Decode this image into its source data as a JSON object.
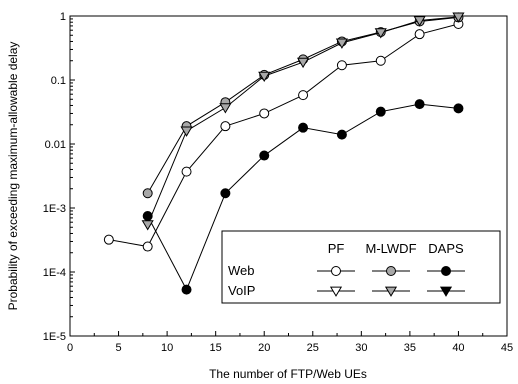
{
  "chart_data": {
    "type": "line",
    "xlabel": "The number of FTP/Web UEs",
    "ylabel": "Probability of exceeding maximum-allowable delay",
    "xlim": [
      0,
      45
    ],
    "ylim": [
      1e-05,
      1
    ],
    "yscale": "log",
    "x_ticks": [
      0,
      5,
      10,
      15,
      20,
      25,
      30,
      35,
      40,
      45
    ],
    "x_tick_labels": [
      "0",
      "5",
      "10",
      "15",
      "20",
      "25",
      "30",
      "35",
      "40",
      "45"
    ],
    "y_ticks": [
      1e-05,
      0.0001,
      0.001,
      0.01,
      0.1,
      1
    ],
    "y_tick_labels": [
      "1E-5",
      "1E-4",
      "1E-3",
      "0.01",
      "0.1",
      "1"
    ],
    "grid": false,
    "legend": {
      "placement": "bottom-right",
      "column_headers": [
        "PF",
        "M-LWDF",
        "DAPS"
      ],
      "row_labels": [
        "Web",
        "VoIP"
      ]
    },
    "series": [
      {
        "traffic": "Web",
        "scheduler": "PF",
        "marker": "circle",
        "fill": "#ffffff",
        "x": [
          4,
          8,
          12,
          16,
          20,
          24,
          28,
          32,
          36,
          40
        ],
        "y": [
          0.00032,
          0.00025,
          0.0037,
          0.019,
          0.03,
          0.058,
          0.17,
          0.2,
          0.52,
          0.75
        ]
      },
      {
        "traffic": "Web",
        "scheduler": "M-LWDF",
        "marker": "circle",
        "fill": "#a8a8a8",
        "x": [
          8,
          12,
          16,
          20,
          24,
          28,
          32,
          36,
          40
        ],
        "y": [
          0.0017,
          0.019,
          0.045,
          0.12,
          0.21,
          0.4,
          0.56,
          0.82,
          0.95
        ]
      },
      {
        "traffic": "Web",
        "scheduler": "DAPS",
        "marker": "circle",
        "fill": "#000000",
        "x": [
          8,
          12,
          16,
          20,
          24,
          28,
          32,
          36,
          40
        ],
        "y": [
          0.00075,
          5.3e-05,
          0.0017,
          0.0066,
          0.018,
          0.014,
          0.032,
          0.042,
          0.036
        ]
      },
      {
        "traffic": "VoIP",
        "scheduler": "PF",
        "marker": "triangle-down",
        "fill": "#ffffff",
        "x": [],
        "y": []
      },
      {
        "traffic": "VoIP",
        "scheduler": "M-LWDF",
        "marker": "triangle-down",
        "fill": "#a8a8a8",
        "x": [
          8,
          12,
          16,
          20,
          24,
          28,
          32,
          36,
          40
        ],
        "y": [
          0.00055,
          0.016,
          0.037,
          0.115,
          0.19,
          0.38,
          0.55,
          0.85,
          0.97
        ]
      },
      {
        "traffic": "VoIP",
        "scheduler": "DAPS",
        "marker": "triangle-down",
        "fill": "#000000",
        "x": [],
        "y": []
      }
    ]
  }
}
